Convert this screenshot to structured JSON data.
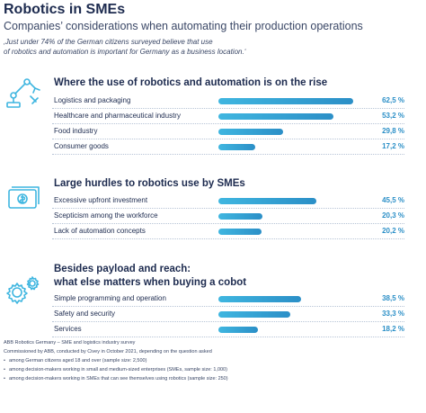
{
  "header": {
    "title": "Robotics in SMEs",
    "subtitle": "Companies’ considerations when automating their production operations",
    "quote_line1": "‚Just under 74% of the German citizens surveyed believe that use",
    "quote_line2": "of robotics and automation is important for Germany as a business location.‘"
  },
  "colors": {
    "bar": "#2b8fc7",
    "bar_light": "#3fb6e0",
    "text": "#1d2b4f"
  },
  "chart_data": [
    {
      "type": "bar",
      "title": "Where the use of robotics and automation is on the rise",
      "icon": "robot-arm-icon",
      "categories": [
        "Logistics and packaging",
        "Healthcare and pharmaceutical industry",
        "Food industry",
        "Consumer goods"
      ],
      "values": [
        62.5,
        53.2,
        29.8,
        17.2
      ],
      "value_labels": [
        "62,5 %",
        "53,2 %",
        "29,8 %",
        "17,2 %"
      ],
      "xlim": [
        0,
        70
      ],
      "unit": "%"
    },
    {
      "type": "bar",
      "title": "Large hurdles to robotics use by SMEs",
      "icon": "money-icon",
      "categories": [
        "Excessive upfront investment",
        "Scepticism among the workforce",
        "Lack of automation concepts"
      ],
      "values": [
        45.5,
        20.3,
        20.2
      ],
      "value_labels": [
        "45,5 %",
        "20,3 %",
        "20,2 %"
      ],
      "xlim": [
        0,
        70
      ],
      "unit": "%"
    },
    {
      "type": "bar",
      "title_line1": "Besides payload and reach:",
      "title_line2": "what else matters when buying a cobot",
      "icon": "gears-icon",
      "categories": [
        "Simple programming and operation",
        "Safety and security",
        "Services"
      ],
      "values": [
        38.5,
        33.3,
        18.2
      ],
      "value_labels": [
        "38,5 %",
        "33,3 %",
        "18,2 %"
      ],
      "xlim": [
        0,
        70
      ],
      "unit": "%"
    }
  ],
  "footer": {
    "line1": "ABB Robotics Germany – SME and logistics industry survey",
    "line2": "Commissioned by ABB, conducted by Civey in October 2021, depending on the question asked",
    "bullets": [
      "among German citizens aged 18 and over (sample size: 2,500)",
      "among decision-makers working in small and medium-sized enterprises (SMEs, sample size: 1,000)",
      "among decision-makers working in SMEs that can see themselves using robotics (sample size: 250)"
    ]
  }
}
